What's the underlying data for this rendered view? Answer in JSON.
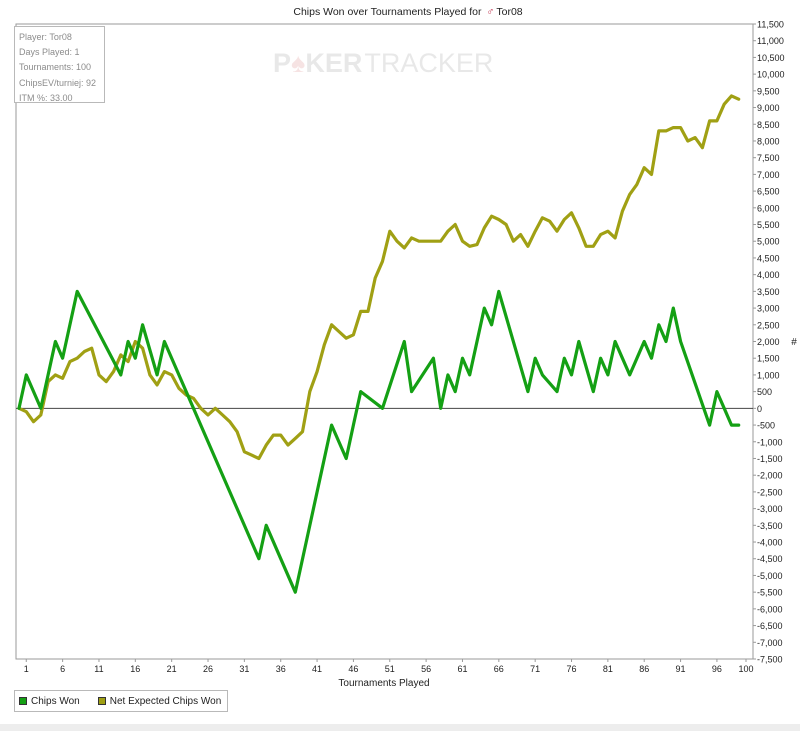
{
  "watermark": {
    "part1": "P",
    "part2": "KER",
    "part3": "TRACKER"
  },
  "stats": {
    "player": "Player: Tor08",
    "days": "Days Played: 1",
    "tournaments": "Tournaments: 100",
    "chipsev": "ChipsEV/turniej: 92",
    "itm": "ITM %: 33.00"
  },
  "chart_data": {
    "type": "line",
    "title_prefix": "Chips Won over Tournaments Played for",
    "title_player": "Tor08",
    "xlabel": "Tournaments Played",
    "ylabel": "#",
    "xlim": [
      0,
      100
    ],
    "ylim": [
      -7500,
      11500
    ],
    "ytick_step": 500,
    "xticks": [
      1,
      6,
      11,
      16,
      21,
      26,
      31,
      36,
      41,
      46,
      51,
      56,
      61,
      66,
      71,
      76,
      81,
      86,
      91,
      96,
      100
    ],
    "grid": false,
    "legend_position": "bottom-left",
    "series": [
      {
        "name": "Chips Won",
        "color": "#14a014",
        "x": [
          0,
          1,
          3,
          5,
          6,
          8,
          14,
          15,
          16,
          17,
          19,
          20,
          33,
          34,
          38,
          43,
          45,
          46,
          47,
          50,
          53,
          54,
          57,
          58,
          59,
          60,
          61,
          62,
          64,
          65,
          66,
          70,
          71,
          72,
          74,
          75,
          76,
          77,
          79,
          80,
          81,
          82,
          83,
          84,
          86,
          87,
          88,
          89,
          90,
          91,
          95,
          96,
          97,
          98,
          99
        ],
        "y": [
          0,
          1000,
          0,
          2000,
          1500,
          3500,
          1000,
          2000,
          1500,
          2500,
          1000,
          2000,
          -4500,
          -3500,
          -5500,
          -500,
          -1500,
          -500,
          500,
          0,
          2000,
          500,
          1500,
          0,
          1000,
          500,
          1500,
          1000,
          3000,
          2500,
          3500,
          500,
          1500,
          1000,
          500,
          1500,
          1000,
          2000,
          500,
          1500,
          1000,
          2000,
          1500,
          1000,
          2000,
          1500,
          2500,
          2000,
          3000,
          2000,
          -500,
          500,
          0,
          -500,
          -500
        ]
      },
      {
        "name": "Net Expected Chips Won",
        "color": "#a0a014",
        "x": [
          0,
          1,
          2,
          3,
          4,
          5,
          6,
          7,
          8,
          9,
          10,
          11,
          12,
          13,
          14,
          15,
          16,
          17,
          18,
          19,
          20,
          21,
          22,
          23,
          24,
          25,
          26,
          27,
          28,
          29,
          30,
          31,
          32,
          33,
          34,
          35,
          36,
          37,
          38,
          39,
          40,
          41,
          42,
          43,
          44,
          45,
          46,
          47,
          48,
          49,
          50,
          51,
          52,
          53,
          54,
          55,
          56,
          57,
          58,
          59,
          60,
          61,
          62,
          63,
          64,
          65,
          66,
          67,
          68,
          69,
          70,
          71,
          72,
          73,
          74,
          75,
          76,
          77,
          78,
          79,
          80,
          81,
          82,
          83,
          84,
          85,
          86,
          87,
          88,
          89,
          90,
          91,
          92,
          93,
          94,
          95,
          96,
          97,
          98,
          99
        ],
        "y": [
          0,
          -100,
          -400,
          -200,
          800,
          1000,
          900,
          1400,
          1500,
          1700,
          1800,
          1000,
          800,
          1100,
          1600,
          1400,
          2000,
          1800,
          1000,
          700,
          1100,
          1000,
          600,
          400,
          300,
          0,
          -200,
          0,
          -200,
          -400,
          -700,
          -1300,
          -1400,
          -1500,
          -1100,
          -800,
          -800,
          -1100,
          -900,
          -700,
          500,
          1100,
          1900,
          2500,
          2300,
          2100,
          2200,
          2900,
          2900,
          3900,
          4400,
          5300,
          5000,
          4800,
          5100,
          5000,
          5000,
          5000,
          5000,
          5300,
          5500,
          5000,
          4850,
          4900,
          5400,
          5750,
          5650,
          5500,
          5000,
          5200,
          4850,
          5300,
          5700,
          5600,
          5300,
          5650,
          5850,
          5400,
          4850,
          4850,
          5200,
          5300,
          5100,
          5900,
          6400,
          6700,
          7200,
          7000,
          8300,
          8300,
          8400,
          8400,
          8000,
          8100,
          7800,
          8600,
          8600,
          9100,
          9350,
          9250
        ]
      }
    ]
  }
}
